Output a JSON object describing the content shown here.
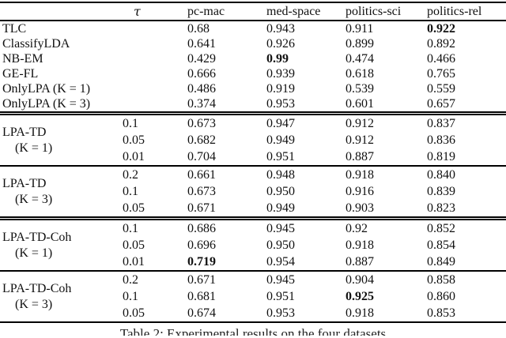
{
  "columns": {
    "method_header": "",
    "tau": "τ",
    "datasets": [
      "pc-mac",
      "med-space",
      "politics-sci",
      "politics-rel"
    ]
  },
  "sections": [
    {
      "id": "baselines",
      "rule_above": "none",
      "rows": [
        {
          "method": "TLC",
          "tau": "",
          "values": [
            "0.68",
            "0.943",
            "0.911",
            "0.922"
          ],
          "bold": [
            3
          ]
        },
        {
          "method": "ClassifyLDA",
          "tau": "",
          "values": [
            "0.641",
            "0.926",
            "0.899",
            "0.892"
          ],
          "bold": []
        },
        {
          "method": "NB-EM",
          "tau": "",
          "values": [
            "0.429",
            "0.99",
            "0.474",
            "0.466"
          ],
          "bold": [
            1
          ]
        },
        {
          "method": "GE-FL",
          "tau": "",
          "values": [
            "0.666",
            "0.939",
            "0.618",
            "0.765"
          ],
          "bold": []
        },
        {
          "method": "OnlyLPA (K = 1)",
          "tau": "",
          "values": [
            "0.486",
            "0.919",
            "0.539",
            "0.559"
          ],
          "bold": []
        },
        {
          "method": "OnlyLPA (K = 3)",
          "tau": "",
          "values": [
            "0.374",
            "0.953",
            "0.601",
            "0.657"
          ],
          "bold": []
        }
      ]
    },
    {
      "id": "lpa-td-k1",
      "rule_above": "double",
      "group_label": {
        "name": "LPA-TD",
        "k": "(K = 1)"
      },
      "rows": [
        {
          "tau": "0.1",
          "values": [
            "0.673",
            "0.947",
            "0.912",
            "0.837"
          ],
          "bold": []
        },
        {
          "tau": "0.05",
          "values": [
            "0.682",
            "0.949",
            "0.912",
            "0.836"
          ],
          "bold": []
        },
        {
          "tau": "0.01",
          "values": [
            "0.704",
            "0.951",
            "0.887",
            "0.819"
          ],
          "bold": []
        }
      ]
    },
    {
      "id": "lpa-td-k3",
      "rule_above": "single",
      "group_label": {
        "name": "LPA-TD",
        "k": "(K = 3)"
      },
      "rows": [
        {
          "tau": "0.2",
          "values": [
            "0.661",
            "0.948",
            "0.918",
            "0.840"
          ],
          "bold": []
        },
        {
          "tau": "0.1",
          "values": [
            "0.673",
            "0.950",
            "0.916",
            "0.839"
          ],
          "bold": []
        },
        {
          "tau": "0.05",
          "values": [
            "0.671",
            "0.949",
            "0.903",
            "0.823"
          ],
          "bold": []
        }
      ]
    },
    {
      "id": "lpa-td-coh-k1",
      "rule_above": "double",
      "group_label": {
        "name": "LPA-TD-Coh",
        "k": "(K = 1)"
      },
      "rows": [
        {
          "tau": "0.1",
          "values": [
            "0.686",
            "0.945",
            "0.92",
            "0.852"
          ],
          "bold": []
        },
        {
          "tau": "0.05",
          "values": [
            "0.696",
            "0.950",
            "0.918",
            "0.854"
          ],
          "bold": []
        },
        {
          "tau": "0.01",
          "values": [
            "0.719",
            "0.954",
            "0.887",
            "0.849"
          ],
          "bold": [
            0
          ]
        }
      ]
    },
    {
      "id": "lpa-td-coh-k3",
      "rule_above": "single",
      "group_label": {
        "name": "LPA-TD-Coh",
        "k": "(K = 3)"
      },
      "rows": [
        {
          "tau": "0.2",
          "values": [
            "0.671",
            "0.945",
            "0.904",
            "0.858"
          ],
          "bold": []
        },
        {
          "tau": "0.1",
          "values": [
            "0.681",
            "0.951",
            "0.925",
            "0.860"
          ],
          "bold": [
            2
          ]
        },
        {
          "tau": "0.05",
          "values": [
            "0.674",
            "0.953",
            "0.918",
            "0.853"
          ],
          "bold": []
        }
      ]
    }
  ],
  "caption": {
    "text": "Table 2: Experimental results on the four datasets"
  }
}
